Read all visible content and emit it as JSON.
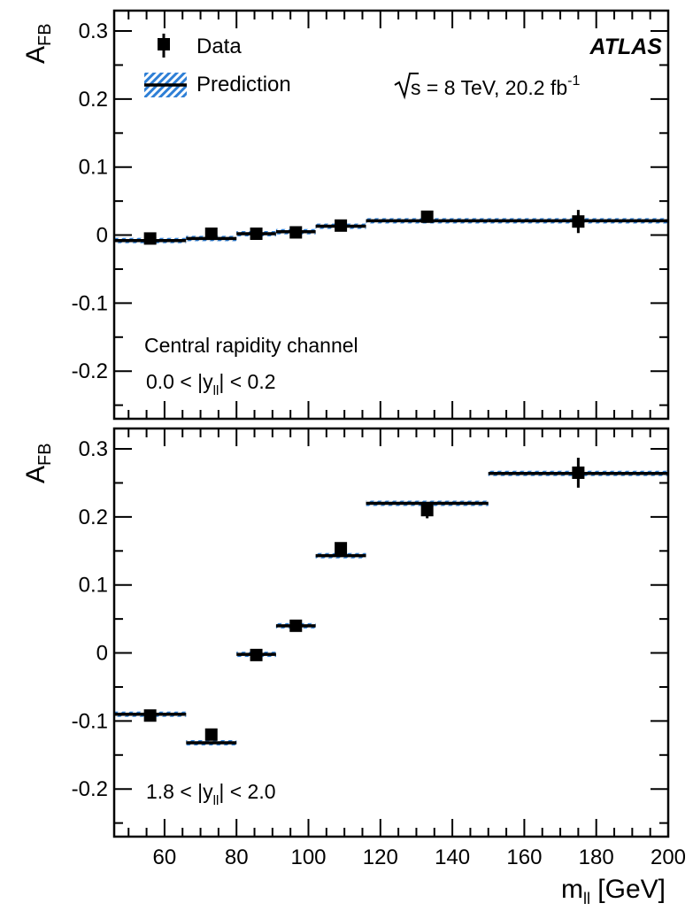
{
  "chart_data": [
    {
      "type": "scatter",
      "panel": "upper",
      "ylabel": "A",
      "ylabel_sub": "FB",
      "ylim": [
        -0.27,
        0.33
      ],
      "xlim": [
        46,
        200
      ],
      "yticks": [
        "0.3",
        "0.2",
        "0.1",
        "0",
        "-0.1",
        "-0.2"
      ],
      "experiment": "ATLAS",
      "energy_text": "s = 8 TeV, 20.2 fb",
      "energy_sup": "-1",
      "channel_label": "Central rapidity channel",
      "range_label": {
        "pre": "0.0 < |y",
        "sub": "ll",
        "post": "| < 0.2"
      },
      "legend": {
        "data_label": "Data",
        "prediction_label": "Prediction",
        "position": "top-left"
      },
      "bins": [
        46,
        66,
        80,
        91,
        102,
        116,
        150,
        200
      ],
      "series": [
        {
          "name": "Prediction",
          "values": [
            -0.008,
            -0.005,
            0.002,
            0.005,
            0.013,
            0.021,
            0.021
          ]
        },
        {
          "name": "Data",
          "x": [
            56,
            73,
            85.5,
            96.5,
            109,
            133,
            175
          ],
          "values": [
            -0.005,
            0.002,
            0.002,
            0.004,
            0.014,
            0.027,
            0.02
          ],
          "errors": [
            0.005,
            0.005,
            0.005,
            0.005,
            0.006,
            0.007,
            0.017
          ]
        }
      ]
    },
    {
      "type": "scatter",
      "panel": "lower",
      "ylabel": "A",
      "ylabel_sub": "FB",
      "xlabel": "m",
      "xlabel_sub": "ll",
      "xlabel_unit": "[GeV]",
      "ylim": [
        -0.27,
        0.33
      ],
      "xlim": [
        46,
        200
      ],
      "yticks": [
        "0.3",
        "0.2",
        "0.1",
        "0",
        "-0.1",
        "-0.2"
      ],
      "xticks": [
        "60",
        "80",
        "100",
        "120",
        "140",
        "160",
        "180",
        "200"
      ],
      "range_label": {
        "pre": "1.8 < |y",
        "sub": "ll",
        "post": "| < 2.0"
      },
      "bins": [
        46,
        66,
        80,
        91,
        102,
        116,
        150,
        200
      ],
      "series": [
        {
          "name": "Prediction",
          "values": [
            -0.09,
            -0.132,
            -0.002,
            0.04,
            0.143,
            0.22,
            0.264
          ]
        },
        {
          "name": "Data",
          "x": [
            56,
            73,
            85.5,
            96.5,
            109,
            133,
            175
          ],
          "values": [
            -0.092,
            -0.12,
            -0.003,
            0.04,
            0.154,
            0.21,
            0.265
          ],
          "errors": [
            0.006,
            0.008,
            0.006,
            0.005,
            0.008,
            0.012,
            0.022
          ]
        }
      ]
    }
  ]
}
